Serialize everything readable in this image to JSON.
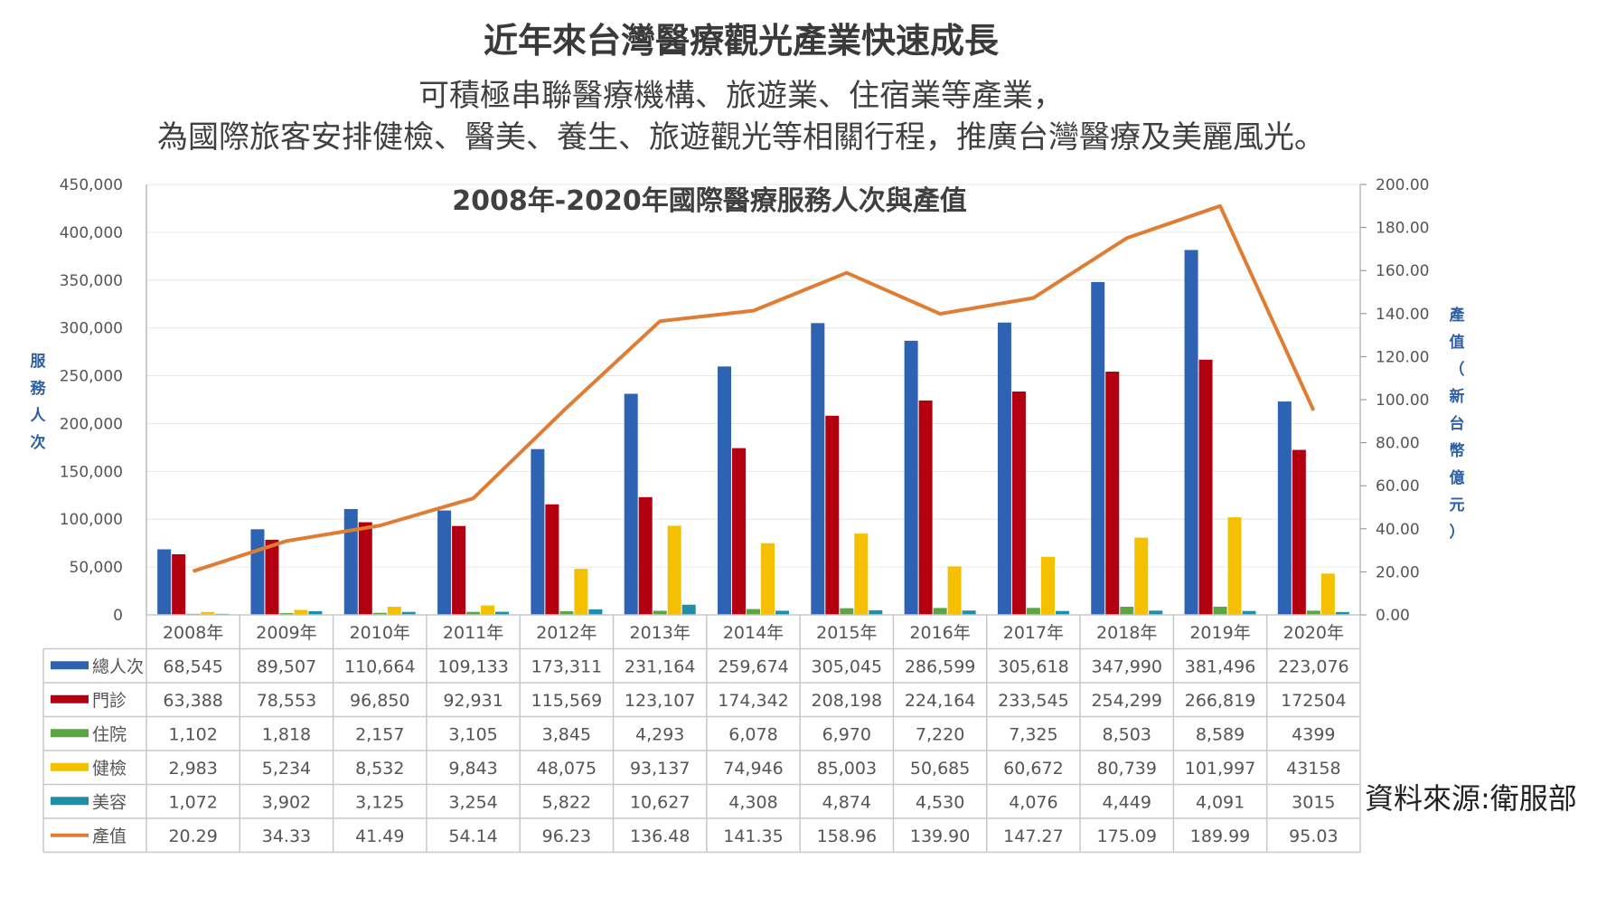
{
  "header": {
    "title": "近年來台灣醫療觀光產業快速成長",
    "subtitle_line1": "可積極串聯醫療機構、旅遊業、住宿業等產業，",
    "subtitle_line2": "為國際旅客安排健檢、醫美、養生、旅遊觀光等相關行程，推廣台灣醫療及美麗風光。"
  },
  "source": "資料來源:衛服部",
  "colors": {
    "total": "#2e62b3",
    "outpatient": "#b30010",
    "inpatient": "#5da544",
    "checkup": "#f5c000",
    "beauty": "#1f8fa8",
    "output": "#e07d35"
  },
  "chart_data": {
    "type": "bar",
    "title": "2008年-2020年國際醫療服務人次與產值",
    "ylabel": "服務人次",
    "y2label": "產值（新台幣億元）",
    "ylim": [
      0,
      450000
    ],
    "y2lim": [
      0,
      200
    ],
    "yticks": [
      "450,000",
      "400,000",
      "350,000",
      "300,000",
      "250,000",
      "200,000",
      "150,000",
      "100,000",
      "50,000",
      "0"
    ],
    "y2ticks": [
      "200.00",
      "180.00",
      "160.00",
      "140.00",
      "120.00",
      "100.00",
      "80.00",
      "60.00",
      "40.00",
      "20.00",
      "0.00"
    ],
    "categories": [
      "2008年",
      "2009年",
      "2010年",
      "2011年",
      "2012年",
      "2013年",
      "2014年",
      "2015年",
      "2016年",
      "2017年",
      "2018年",
      "2019年",
      "2020年"
    ],
    "series": [
      {
        "name": "總人次",
        "type": "bar",
        "color": "#2e62b3",
        "values": [
          68545,
          89507,
          110664,
          109133,
          173311,
          231164,
          259674,
          305045,
          286599,
          305618,
          347990,
          381496,
          223076
        ],
        "labels": [
          "68,545",
          "89,507",
          "110,664",
          "109,133",
          "173,311",
          "231,164",
          "259,674",
          "305,045",
          "286,599",
          "305,618",
          "347,990",
          "381,496",
          "223,076"
        ]
      },
      {
        "name": "門診",
        "type": "bar",
        "color": "#b30010",
        "values": [
          63388,
          78553,
          96850,
          92931,
          115569,
          123107,
          174342,
          208198,
          224164,
          233545,
          254299,
          266819,
          172504
        ],
        "labels": [
          "63,388",
          "78,553",
          "96,850",
          "92,931",
          "115,569",
          "123,107",
          "174,342",
          "208,198",
          "224,164",
          "233,545",
          "254,299",
          "266,819",
          "172504"
        ]
      },
      {
        "name": "住院",
        "type": "bar",
        "color": "#5da544",
        "values": [
          1102,
          1818,
          2157,
          3105,
          3845,
          4293,
          6078,
          6970,
          7220,
          7325,
          8503,
          8589,
          4399
        ],
        "labels": [
          "1,102",
          "1,818",
          "2,157",
          "3,105",
          "3,845",
          "4,293",
          "6,078",
          "6,970",
          "7,220",
          "7,325",
          "8,503",
          "8,589",
          "4399"
        ]
      },
      {
        "name": "健檢",
        "type": "bar",
        "color": "#f5c000",
        "values": [
          2983,
          5234,
          8532,
          9843,
          48075,
          93137,
          74946,
          85003,
          50685,
          60672,
          80739,
          101997,
          43158
        ],
        "labels": [
          "2,983",
          "5,234",
          "8,532",
          "9,843",
          "48,075",
          "93,137",
          "74,946",
          "85,003",
          "50,685",
          "60,672",
          "80,739",
          "101,997",
          "43158"
        ]
      },
      {
        "name": "美容",
        "type": "bar",
        "color": "#1f8fa8",
        "values": [
          1072,
          3902,
          3125,
          3254,
          5822,
          10627,
          4308,
          4874,
          4530,
          4076,
          4449,
          4091,
          3015
        ],
        "labels": [
          "1,072",
          "3,902",
          "3,125",
          "3,254",
          "5,822",
          "10,627",
          "4,308",
          "4,874",
          "4,530",
          "4,076",
          "4,449",
          "4,091",
          "3015"
        ]
      },
      {
        "name": "產值",
        "type": "line",
        "axis": "right",
        "color": "#e07d35",
        "values": [
          20.29,
          34.33,
          41.49,
          54.14,
          96.23,
          136.48,
          141.35,
          158.96,
          139.9,
          147.27,
          175.09,
          189.99,
          95.03
        ],
        "labels": [
          "20.29",
          "34.33",
          "41.49",
          "54.14",
          "96.23",
          "136.48",
          "141.35",
          "158.96",
          "139.90",
          "147.27",
          "175.09",
          "189.99",
          "95.03"
        ]
      }
    ],
    "grid": true,
    "legend": "table-below"
  }
}
